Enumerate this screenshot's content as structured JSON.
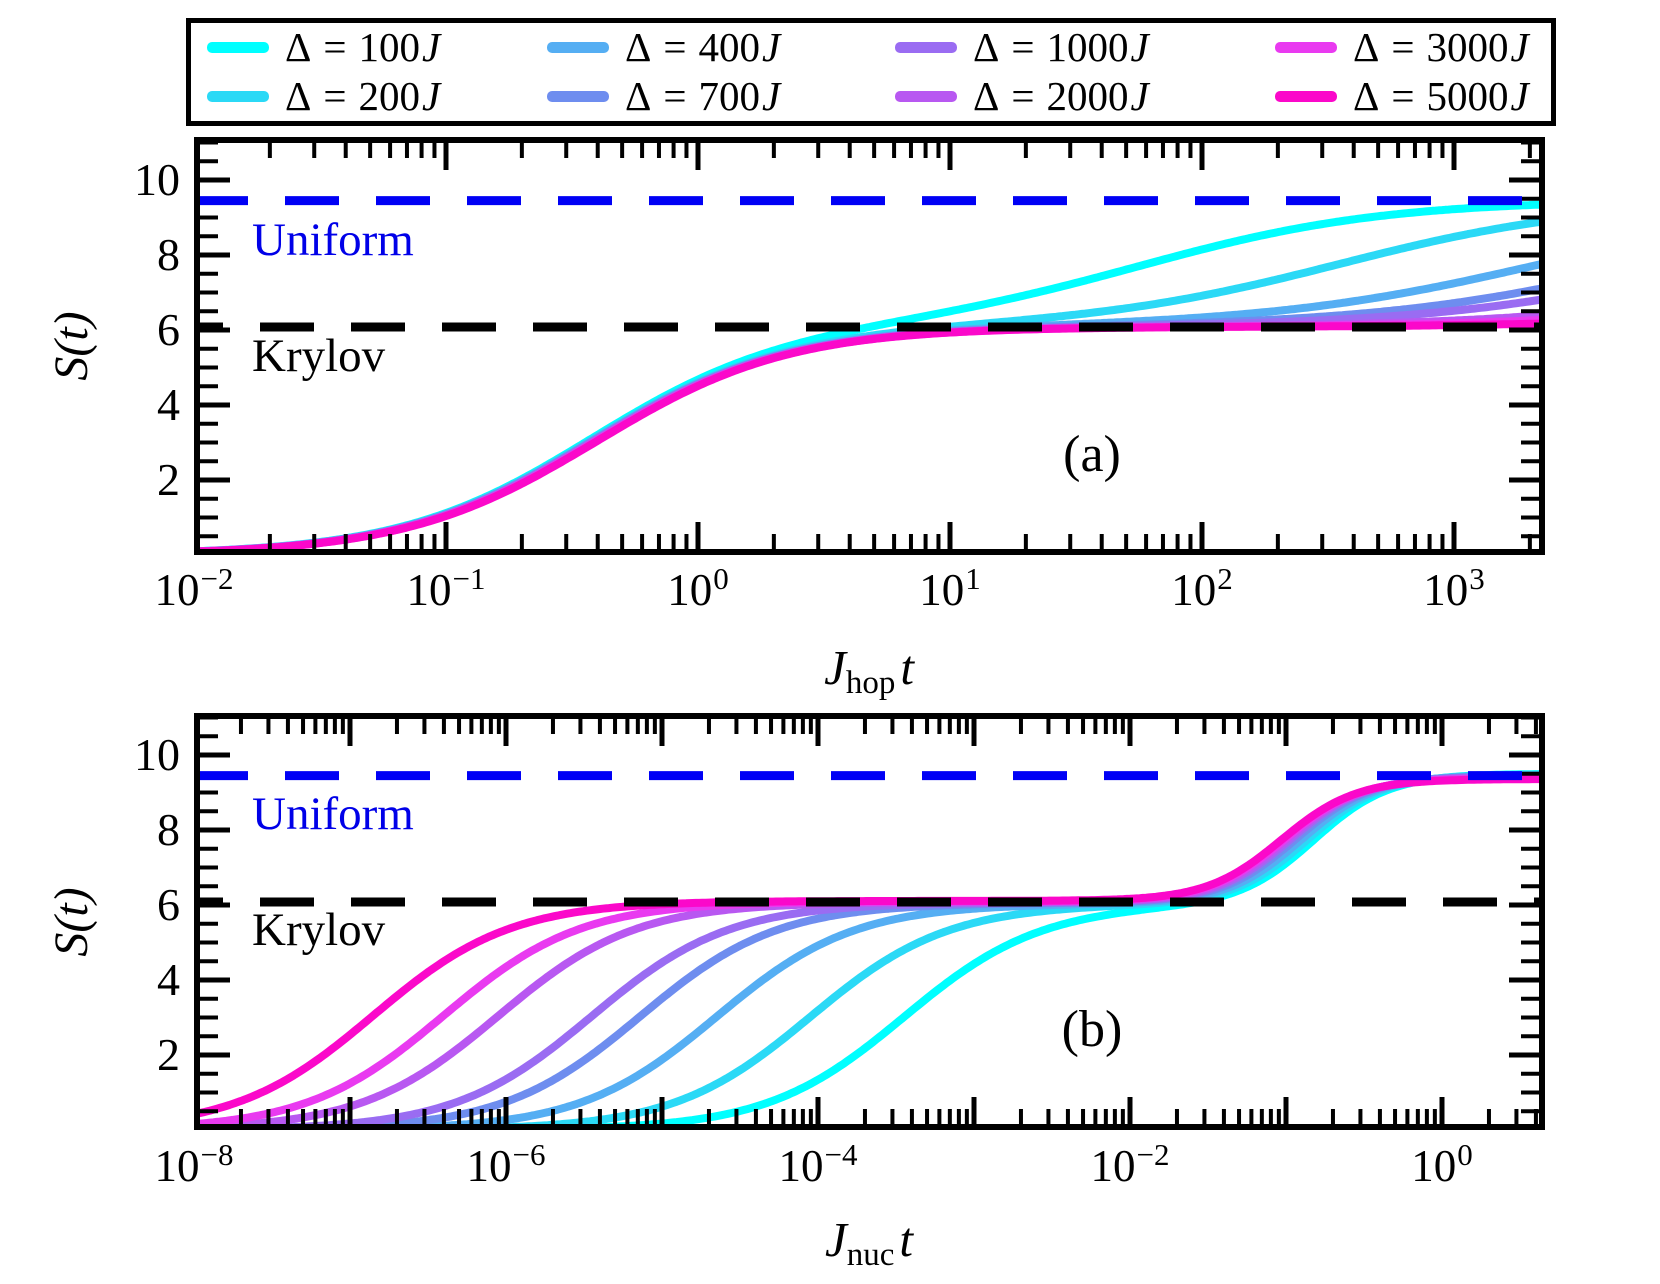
{
  "colors": {
    "background": "#ffffff",
    "axis": "#000000",
    "uniform_line": "#0000f5",
    "krylov_line": "#000000",
    "uniform_text": "#0000e8"
  },
  "legend": {
    "entries": [
      {
        "label": "Δ = 100J",
        "symbol": "Δ",
        "eq": "=",
        "value": "100",
        "unit": "J",
        "color": "#00ffff"
      },
      {
        "label": "Δ = 200J",
        "symbol": "Δ",
        "eq": "=",
        "value": "200",
        "unit": "J",
        "color": "#2bd9f6"
      },
      {
        "label": "Δ = 400J",
        "symbol": "Δ",
        "eq": "=",
        "value": "400",
        "unit": "J",
        "color": "#55aef3"
      },
      {
        "label": "Δ = 700J",
        "symbol": "Δ",
        "eq": "=",
        "value": "700",
        "unit": "J",
        "color": "#6e8def"
      },
      {
        "label": "Δ = 1000J",
        "symbol": "Δ",
        "eq": "=",
        "value": "1000",
        "unit": "J",
        "color": "#9a6cf2"
      },
      {
        "label": "Δ = 2000J",
        "symbol": "Δ",
        "eq": "=",
        "value": "2000",
        "unit": "J",
        "color": "#b858f1"
      },
      {
        "label": "Δ = 3000J",
        "symbol": "Δ",
        "eq": "=",
        "value": "3000",
        "unit": "J",
        "color": "#e93af0"
      },
      {
        "label": "Δ = 5000J",
        "symbol": "Δ",
        "eq": "=",
        "value": "5000",
        "unit": "J",
        "color": "#fb08ca"
      }
    ]
  },
  "chart_data": [
    {
      "type": "line",
      "panel_label": "(a)",
      "xscale": "log",
      "xlabel": {
        "base": "J",
        "sub": "hop",
        "var": "t",
        "text": "J_hop t"
      },
      "ylabel": "S(t)",
      "x_tick_exponents": [
        -2,
        -1,
        0,
        1,
        2,
        3
      ],
      "x_range_exp": [
        -2,
        3.36
      ],
      "ylim": [
        0,
        11.15
      ],
      "y_major_ticks": [
        2,
        4,
        6,
        8,
        10
      ],
      "y_minor_step": 0.5,
      "grid": false,
      "hlines": [
        {
          "name": "Uniform",
          "value": 9.45,
          "color": "#0000f5",
          "style": "dashed"
        },
        {
          "name": "Krylov",
          "value": 6.08,
          "color": "#000000",
          "style": "dashed"
        }
      ],
      "series": [
        {
          "name": "Δ = 100J",
          "delta": 100,
          "color": "#00ffff",
          "krylov_plateau": 6.08,
          "uniform_plateau": 9.47,
          "rise1_mid_exp": -0.43,
          "rise1_width": 0.38,
          "rise2_mid_exp": 1.78,
          "rise2_width": 0.48
        },
        {
          "name": "Δ = 200J",
          "delta": 200,
          "color": "#2bd9f6",
          "krylov_plateau": 6.08,
          "uniform_plateau": 9.46,
          "rise1_mid_exp": -0.426,
          "rise1_width": 0.38,
          "rise2_mid_exp": 2.55,
          "rise2_width": 0.5
        },
        {
          "name": "Δ = 400J",
          "delta": 400,
          "color": "#55aef3",
          "krylov_plateau": 6.08,
          "uniform_plateau": 9.45,
          "rise1_mid_exp": -0.421,
          "rise1_width": 0.38,
          "rise2_mid_exp": 3.35,
          "rise2_width": 0.55
        },
        {
          "name": "Δ = 700J",
          "delta": 700,
          "color": "#6e8def",
          "krylov_plateau": 6.08,
          "uniform_plateau": 9.45,
          "rise1_mid_exp": -0.417,
          "rise1_width": 0.38,
          "rise2_mid_exp": 3.8,
          "rise2_width": 0.55
        },
        {
          "name": "Δ = 1000J",
          "delta": 1000,
          "color": "#9a6cf2",
          "krylov_plateau": 6.08,
          "uniform_plateau": 9.44,
          "rise1_mid_exp": -0.413,
          "rise1_width": 0.38,
          "rise2_mid_exp": 4.05,
          "rise2_width": 0.55
        },
        {
          "name": "Δ = 2000J",
          "delta": 2000,
          "color": "#b858f1",
          "krylov_plateau": 6.08,
          "uniform_plateau": 9.43,
          "rise1_mid_exp": -0.409,
          "rise1_width": 0.38,
          "rise2_mid_exp": 4.6,
          "rise2_width": 0.55
        },
        {
          "name": "Δ = 3000J",
          "delta": 3000,
          "color": "#e93af0",
          "krylov_plateau": 6.08,
          "uniform_plateau": 9.43,
          "rise1_mid_exp": -0.404,
          "rise1_width": 0.38,
          "rise2_mid_exp": 4.9,
          "rise2_width": 0.55
        },
        {
          "name": "Δ = 5000J",
          "delta": 5000,
          "color": "#fb08ca",
          "krylov_plateau": 6.08,
          "uniform_plateau": 9.42,
          "rise1_mid_exp": -0.4,
          "rise1_width": 0.38,
          "rise2_mid_exp": 5.3,
          "rise2_width": 0.55
        }
      ]
    },
    {
      "type": "line",
      "panel_label": "(b)",
      "xscale": "log",
      "xlabel": {
        "base": "J",
        "sub": "nuc",
        "var": "t",
        "text": "J_nuc t"
      },
      "ylabel": "S(t)",
      "x_tick_exponents": [
        -8,
        -6,
        -4,
        -2,
        0
      ],
      "x_range_exp": [
        -8,
        0.66
      ],
      "ylim": [
        0,
        11.12
      ],
      "y_major_ticks": [
        2,
        4,
        6,
        8,
        10
      ],
      "y_minor_step": 0.5,
      "grid": false,
      "hlines": [
        {
          "name": "Uniform",
          "value": 9.45,
          "color": "#0000f5",
          "style": "dashed"
        },
        {
          "name": "Krylov",
          "value": 6.08,
          "color": "#000000",
          "style": "dashed"
        }
      ],
      "series": [
        {
          "name": "Δ = 100J",
          "delta": 100,
          "color": "#00ffff",
          "krylov_plateau": 6.02,
          "uniform_plateau": 9.5,
          "rise1_mid_exp": -3.45,
          "rise1_width": 0.44,
          "rise2_mid_exp": -0.82,
          "rise2_width": 0.24
        },
        {
          "name": "Δ = 200J",
          "delta": 200,
          "color": "#2bd9f6",
          "krylov_plateau": 6.03,
          "uniform_plateau": 9.48,
          "rise1_mid_exp": -4.05,
          "rise1_width": 0.44,
          "rise2_mid_exp": -0.86,
          "rise2_width": 0.24
        },
        {
          "name": "Δ = 400J",
          "delta": 400,
          "color": "#55aef3",
          "krylov_plateau": 6.04,
          "uniform_plateau": 9.46,
          "rise1_mid_exp": -4.65,
          "rise1_width": 0.44,
          "rise2_mid_exp": -0.9,
          "rise2_width": 0.24
        },
        {
          "name": "Δ = 700J",
          "delta": 700,
          "color": "#6e8def",
          "krylov_plateau": 6.06,
          "uniform_plateau": 9.44,
          "rise1_mid_exp": -5.14,
          "rise1_width": 0.44,
          "rise2_mid_exp": -0.94,
          "rise2_width": 0.24
        },
        {
          "name": "Δ = 1000J",
          "delta": 1000,
          "color": "#9a6cf2",
          "krylov_plateau": 6.07,
          "uniform_plateau": 9.42,
          "rise1_mid_exp": -5.45,
          "rise1_width": 0.44,
          "rise2_mid_exp": -0.97,
          "rise2_width": 0.24
        },
        {
          "name": "Δ = 2000J",
          "delta": 2000,
          "color": "#b858f1",
          "krylov_plateau": 6.08,
          "uniform_plateau": 9.4,
          "rise1_mid_exp": -6.05,
          "rise1_width": 0.44,
          "rise2_mid_exp": -0.99,
          "rise2_width": 0.24
        },
        {
          "name": "Δ = 3000J",
          "delta": 3000,
          "color": "#e93af0",
          "krylov_plateau": 6.1,
          "uniform_plateau": 9.38,
          "rise1_mid_exp": -6.4,
          "rise1_width": 0.44,
          "rise2_mid_exp": -1.01,
          "rise2_width": 0.24
        },
        {
          "name": "Δ = 5000J",
          "delta": 5000,
          "color": "#fb08ca",
          "krylov_plateau": 6.11,
          "uniform_plateau": 9.36,
          "rise1_mid_exp": -6.85,
          "rise1_width": 0.44,
          "rise2_mid_exp": -1.03,
          "rise2_width": 0.24
        }
      ]
    }
  ]
}
